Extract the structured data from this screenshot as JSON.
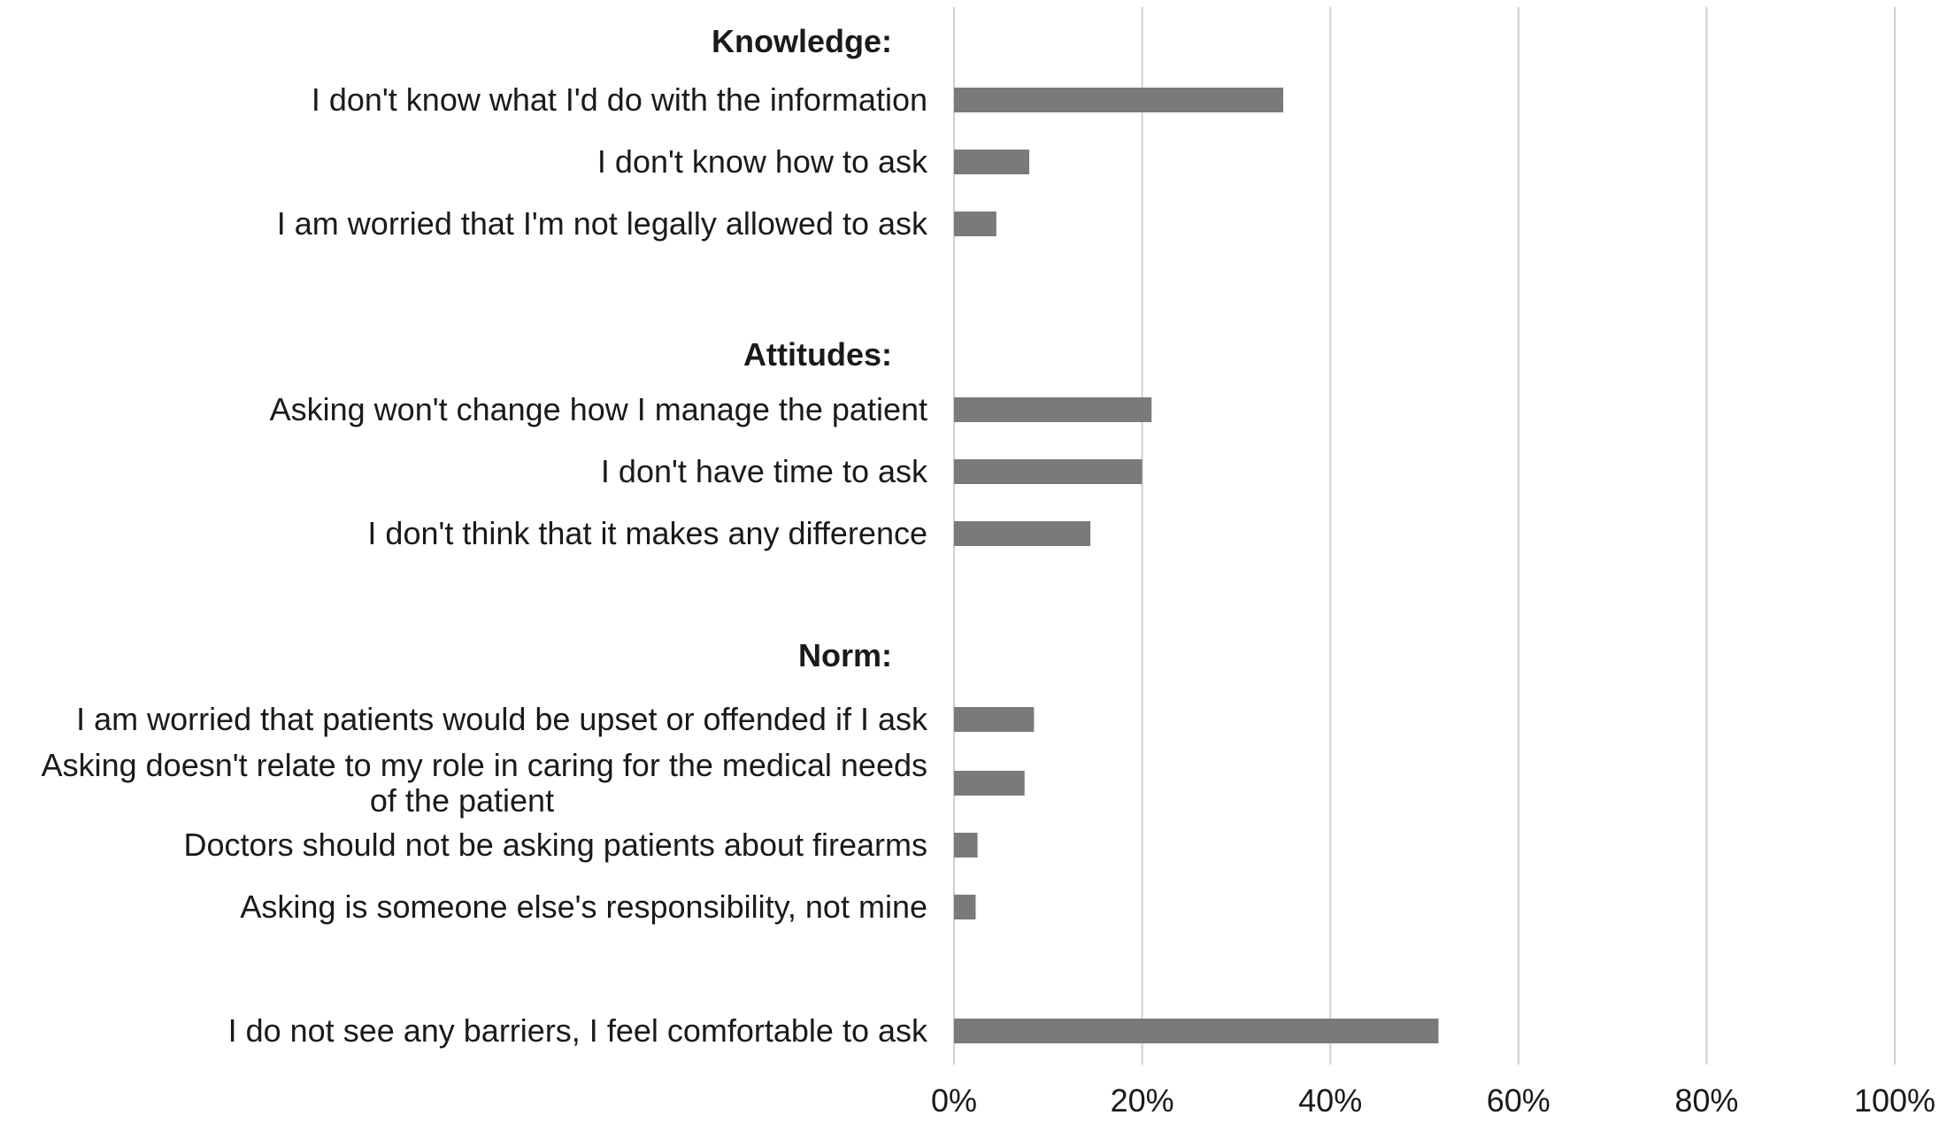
{
  "chart_data": {
    "type": "bar",
    "orientation": "horizontal",
    "xlim": [
      0,
      100
    ],
    "x_unit": "%",
    "grid": true,
    "bar_color": "#7a7a7a",
    "x_ticks": [
      "0%",
      "20%",
      "40%",
      "60%",
      "80%",
      "100%"
    ],
    "rows": [
      {
        "kind": "header",
        "label": "Knowledge:"
      },
      {
        "kind": "bar",
        "label": [
          "I don't know what I'd do with the information"
        ],
        "value": 35
      },
      {
        "kind": "bar",
        "label": [
          "I don't know how to ask"
        ],
        "value": 8
      },
      {
        "kind": "bar",
        "label": [
          "I am worried that I'm not legally allowed to ask"
        ],
        "value": 4.5
      },
      {
        "kind": "header",
        "label": "Attitudes:"
      },
      {
        "kind": "bar",
        "label": [
          "Asking won't change how I manage the patient"
        ],
        "value": 21
      },
      {
        "kind": "bar",
        "label": [
          "I don't have time to ask"
        ],
        "value": 20
      },
      {
        "kind": "bar",
        "label": [
          "I don't think that it makes any difference"
        ],
        "value": 14.5
      },
      {
        "kind": "header",
        "label": "Norm:"
      },
      {
        "kind": "bar",
        "label": [
          "I am worried that patients would be upset or offended if I ask"
        ],
        "value": 8.5
      },
      {
        "kind": "bar",
        "label": [
          "Asking doesn't relate to my role in caring for the medical needs",
          "of the patient"
        ],
        "value": 7.5
      },
      {
        "kind": "bar",
        "label": [
          "Doctors should not be asking patients about firearms"
        ],
        "value": 2.5
      },
      {
        "kind": "bar",
        "label": [
          "Asking is someone else's responsibility, not mine"
        ],
        "value": 2.3
      },
      {
        "kind": "bar",
        "label": [
          "I do not see any barriers, I feel comfortable to ask"
        ],
        "value": 51.5
      }
    ]
  }
}
